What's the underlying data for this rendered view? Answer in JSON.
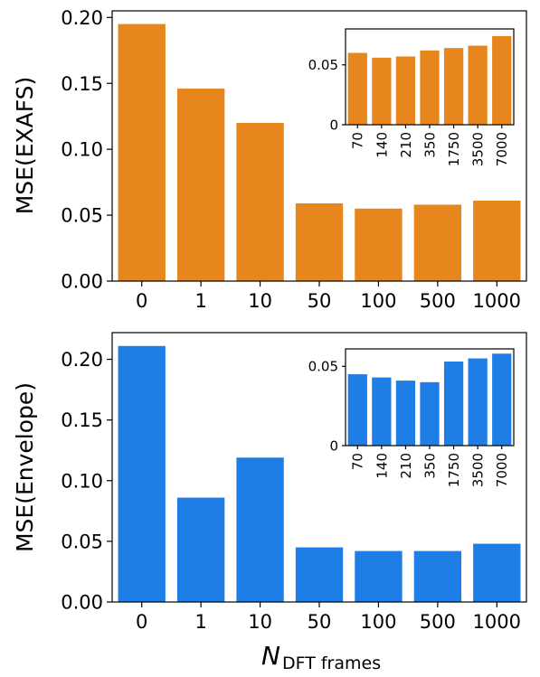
{
  "colors": {
    "top": "#E6861C",
    "bottom": "#1F7DE6"
  },
  "xlabel": {
    "symbol": "N",
    "subscript": "DFT frames"
  },
  "chart_data": [
    {
      "type": "bar",
      "categories": [
        "0",
        "1",
        "10",
        "50",
        "100",
        "500",
        "1000"
      ],
      "values": [
        0.195,
        0.146,
        0.12,
        0.059,
        0.055,
        0.058,
        0.061
      ],
      "ylabel": "MSE(EXAFS)",
      "ylim": [
        0,
        0.205
      ],
      "yticks": [
        "0.00",
        "0.05",
        "0.10",
        "0.15",
        "0.20"
      ],
      "color": "#E6861C",
      "inset": {
        "type": "bar",
        "categories": [
          "70",
          "140",
          "210",
          "350",
          "1750",
          "3500",
          "7000"
        ],
        "values": [
          0.06,
          0.056,
          0.057,
          0.062,
          0.064,
          0.066,
          0.074
        ],
        "ylim": [
          0,
          0.08
        ],
        "yticks": [
          "0",
          "0.05"
        ]
      }
    },
    {
      "type": "bar",
      "categories": [
        "0",
        "1",
        "10",
        "50",
        "100",
        "500",
        "1000"
      ],
      "values": [
        0.211,
        0.086,
        0.119,
        0.045,
        0.042,
        0.042,
        0.048
      ],
      "ylabel": "MSE(Envelope)",
      "ylim": [
        0,
        0.222
      ],
      "yticks": [
        "0.00",
        "0.05",
        "0.10",
        "0.15",
        "0.20"
      ],
      "color": "#1F7DE6",
      "inset": {
        "type": "bar",
        "categories": [
          "70",
          "140",
          "210",
          "350",
          "1750",
          "3500",
          "7000"
        ],
        "values": [
          0.045,
          0.043,
          0.041,
          0.04,
          0.053,
          0.055,
          0.058
        ],
        "ylim": [
          0,
          0.061
        ],
        "yticks": [
          "0",
          "0.05"
        ]
      }
    }
  ]
}
